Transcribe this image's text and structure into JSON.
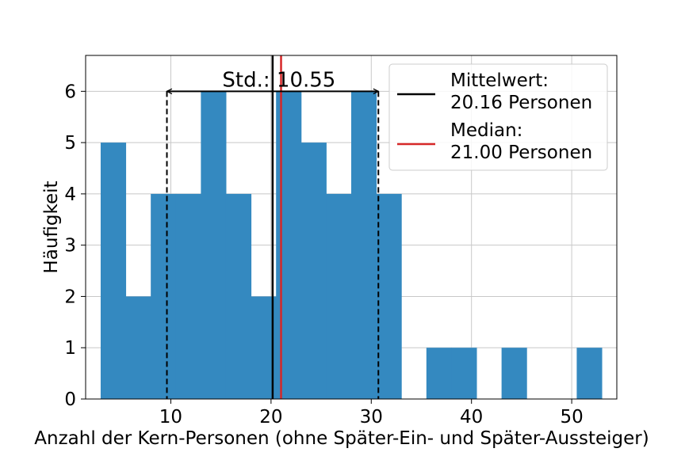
{
  "chart_data": {
    "type": "bar",
    "subtype": "histogram",
    "xlabel": "Anzahl der Kern-Personen (ohne Später-Ein- und Später-Aussteiger)",
    "ylabel": "Häufigkeit",
    "xlim": [
      1.5,
      54.5
    ],
    "ylim": [
      0,
      6.7
    ],
    "xticks": [
      10,
      20,
      30,
      40,
      50
    ],
    "yticks": [
      0,
      1,
      2,
      3,
      4,
      5,
      6
    ],
    "grid": true,
    "bar_color": "#3489c0",
    "bins": [
      {
        "x0": 3.0,
        "x1": 5.5,
        "count": 5
      },
      {
        "x0": 5.5,
        "x1": 8.0,
        "count": 2
      },
      {
        "x0": 8.0,
        "x1": 10.5,
        "count": 4
      },
      {
        "x0": 10.5,
        "x1": 13.0,
        "count": 4
      },
      {
        "x0": 13.0,
        "x1": 15.5,
        "count": 6
      },
      {
        "x0": 15.5,
        "x1": 18.0,
        "count": 4
      },
      {
        "x0": 18.0,
        "x1": 20.5,
        "count": 2
      },
      {
        "x0": 20.5,
        "x1": 23.0,
        "count": 6
      },
      {
        "x0": 23.0,
        "x1": 25.5,
        "count": 5
      },
      {
        "x0": 25.5,
        "x1": 28.0,
        "count": 4
      },
      {
        "x0": 28.0,
        "x1": 30.5,
        "count": 6
      },
      {
        "x0": 30.5,
        "x1": 33.0,
        "count": 4
      },
      {
        "x0": 33.0,
        "x1": 35.5,
        "count": 0
      },
      {
        "x0": 35.5,
        "x1": 38.0,
        "count": 1
      },
      {
        "x0": 38.0,
        "x1": 40.5,
        "count": 1
      },
      {
        "x0": 40.5,
        "x1": 43.0,
        "count": 0
      },
      {
        "x0": 43.0,
        "x1": 45.5,
        "count": 1
      },
      {
        "x0": 45.5,
        "x1": 48.0,
        "count": 0
      },
      {
        "x0": 48.0,
        "x1": 50.5,
        "count": 0
      },
      {
        "x0": 50.5,
        "x1": 53.0,
        "count": 1
      }
    ],
    "mean": {
      "value": 20.16,
      "color": "#000000"
    },
    "median": {
      "value": 21.0,
      "color": "#d62728"
    },
    "std": {
      "value": 10.55,
      "low": 9.61,
      "high": 30.71,
      "level": 6,
      "label": "Std.: 10.55"
    },
    "legend": {
      "placement": "top-right",
      "entries": [
        {
          "line1": "Mittelwert:",
          "line2": "20.16 Personen",
          "color": "#000000"
        },
        {
          "line1": "Median:",
          "line2": "21.00 Personen",
          "color": "#d62728"
        }
      ]
    }
  }
}
